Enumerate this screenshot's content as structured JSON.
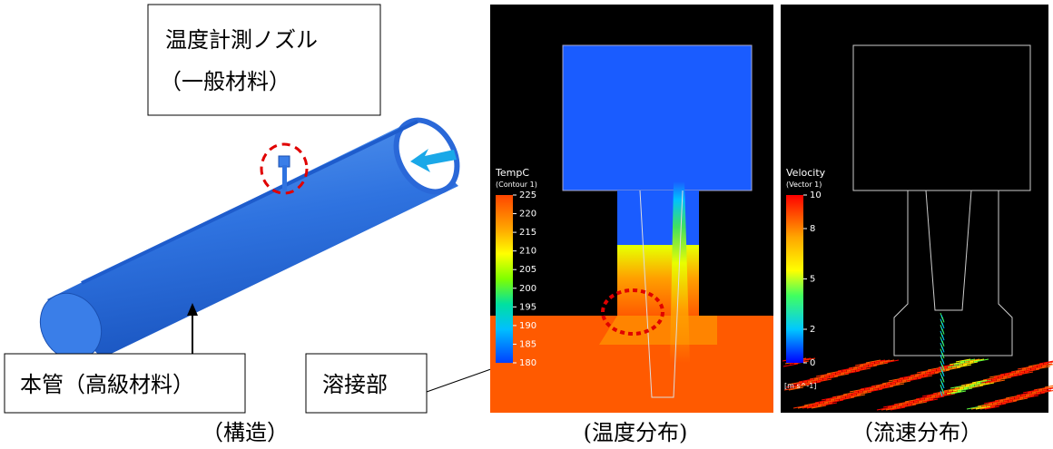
{
  "structure": {
    "nozzle_label": [
      "温度計測ノズル",
      "（一般材料）"
    ],
    "pipe_label": "本管（高級材料）",
    "weld_label": "溶接部",
    "caption": "（構造）"
  },
  "temperature": {
    "title": "TempC",
    "subtitle": "(Contour 1)",
    "ticks": [
      225,
      220,
      215,
      210,
      205,
      200,
      195,
      190,
      185,
      180
    ],
    "caption": "(温度分布)"
  },
  "velocity": {
    "title": "Velocity",
    "subtitle": "(Vector 1)",
    "ticks": [
      10,
      8,
      5,
      2,
      0
    ],
    "unit": "[m s^-1]",
    "caption": "（流速分布）"
  }
}
